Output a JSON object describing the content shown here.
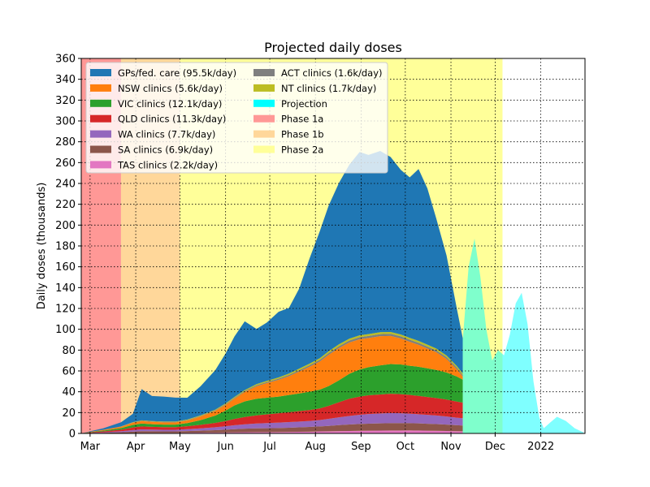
{
  "chart_data": {
    "type": "area",
    "title": "Projected daily doses",
    "ylabel": "Daily doses (thousands)",
    "xlabel": "",
    "ylim": [
      0,
      360
    ],
    "xlim": [
      "2021-02-23",
      "2022-01-31"
    ],
    "yticks": [
      0,
      20,
      40,
      60,
      80,
      100,
      120,
      140,
      160,
      180,
      200,
      220,
      240,
      260,
      280,
      300,
      320,
      340,
      360
    ],
    "xticks": [
      {
        "date": "2021-03-01",
        "label": "Mar"
      },
      {
        "date": "2021-04-01",
        "label": "Apr"
      },
      {
        "date": "2021-05-01",
        "label": "May"
      },
      {
        "date": "2021-06-01",
        "label": "Jun"
      },
      {
        "date": "2021-07-01",
        "label": "Jul"
      },
      {
        "date": "2021-08-01",
        "label": "Aug"
      },
      {
        "date": "2021-09-01",
        "label": "Sep"
      },
      {
        "date": "2021-10-01",
        "label": "Oct"
      },
      {
        "date": "2021-11-01",
        "label": "Nov"
      },
      {
        "date": "2021-12-01",
        "label": "Dec"
      },
      {
        "date": "2022-01-01",
        "label": "2022"
      }
    ],
    "grid": true,
    "legend_position": "upper-left",
    "x_dates": [
      "2021-02-23",
      "2021-03-01",
      "2021-03-10",
      "2021-03-22",
      "2021-03-30",
      "2021-04-05",
      "2021-04-12",
      "2021-04-20",
      "2021-04-28",
      "2021-05-06",
      "2021-05-15",
      "2021-05-25",
      "2021-06-01",
      "2021-06-07",
      "2021-06-14",
      "2021-06-22",
      "2021-06-29",
      "2021-07-07",
      "2021-07-14",
      "2021-07-21",
      "2021-07-28",
      "2021-08-04",
      "2021-08-10",
      "2021-08-17",
      "2021-08-24",
      "2021-08-31",
      "2021-09-06",
      "2021-09-14",
      "2021-09-21",
      "2021-09-28",
      "2021-10-04",
      "2021-10-10",
      "2021-10-16",
      "2021-10-22",
      "2021-10-29",
      "2021-11-05",
      "2021-11-09"
    ],
    "series": [
      {
        "name": "TAS clinics (2.2k/day)",
        "color": "#e377c2",
        "values": [
          0,
          0.1,
          0.2,
          0.3,
          0.5,
          0.6,
          0.6,
          0.6,
          0.6,
          0.7,
          0.8,
          0.9,
          1,
          1.1,
          1.2,
          1.3,
          1.3,
          1.4,
          1.5,
          1.6,
          1.7,
          1.9,
          2,
          2.2,
          2.3,
          2.5,
          2.6,
          2.7,
          2.8,
          2.8,
          2.9,
          2.8,
          2.6,
          2.5,
          2.3,
          2.1,
          2
        ]
      },
      {
        "name": "SA clinics (6.9k/day)",
        "color": "#8c564b",
        "values": [
          0,
          0.2,
          0.4,
          0.8,
          1.2,
          1.5,
          1.4,
          1.3,
          1.3,
          1.5,
          1.8,
          2.2,
          2.6,
          3,
          3.4,
          3.6,
          3.7,
          3.8,
          4,
          4.2,
          4.5,
          4.8,
          5.2,
          5.8,
          6.3,
          6.6,
          6.8,
          6.9,
          7,
          7,
          6.9,
          6.8,
          6.7,
          6.5,
          6.2,
          5.8,
          5.6
        ]
      },
      {
        "name": "WA clinics (7.7k/day)",
        "color": "#9467bd",
        "values": [
          0,
          0.2,
          0.5,
          1,
          1.5,
          1.8,
          1.7,
          1.6,
          1.6,
          1.9,
          2.3,
          2.8,
          3.3,
          3.8,
          4.2,
          4.6,
          4.9,
          5.2,
          5.4,
          5.6,
          5.8,
          6.2,
          6.8,
          7.5,
          8.2,
          8.8,
          9.2,
          9.6,
          9.8,
          9.6,
          9.2,
          8.8,
          8.5,
          8.2,
          7.8,
          7.2,
          7
        ]
      },
      {
        "name": "QLD clinics (11.3k/day)",
        "color": "#d62728",
        "values": [
          0,
          0.4,
          0.8,
          1.5,
          2.5,
          2.8,
          2.6,
          2.5,
          2.5,
          2.8,
          3.4,
          4.2,
          5,
          6,
          7,
          7.8,
          8.4,
          9,
          9.5,
          10,
          10.5,
          11.2,
          12.5,
          14.5,
          16.5,
          17.5,
          18,
          18.2,
          18.5,
          18.3,
          18,
          17.6,
          17.2,
          16.8,
          16.2,
          15.5,
          15
        ]
      },
      {
        "name": "VIC clinics (12.1k/day)",
        "color": "#2ca02c",
        "values": [
          0,
          0.4,
          0.8,
          1.5,
          2.5,
          2.8,
          2.6,
          2.5,
          2.5,
          3,
          4.5,
          7,
          10,
          13,
          15,
          16,
          16,
          16,
          16.5,
          17,
          17.5,
          18,
          19,
          21,
          24,
          26,
          27,
          28,
          28.5,
          28.5,
          28,
          28,
          27.5,
          27,
          26,
          24,
          22
        ]
      },
      {
        "name": "NSW clinics (5.6k/day)",
        "color": "#ff7f0e",
        "values": [
          0,
          0.3,
          0.6,
          1.2,
          2,
          2.3,
          2.2,
          2.1,
          2.1,
          2.5,
          3.5,
          4.5,
          5.5,
          6.5,
          9,
          12,
          14,
          16,
          18,
          21,
          24,
          27,
          30,
          31,
          30,
          29,
          28,
          28,
          27,
          25,
          23,
          21,
          19,
          17,
          13,
          7,
          3
        ]
      },
      {
        "name": "ACT clinics (1.6k/day)",
        "color": "#7f7f7f",
        "values": [
          0,
          0,
          0.1,
          0.2,
          0.3,
          0.4,
          0.4,
          0.4,
          0.4,
          0.5,
          0.5,
          0.6,
          0.7,
          0.8,
          0.9,
          1,
          1.1,
          1.2,
          1.3,
          1.4,
          1.5,
          1.6,
          1.7,
          1.8,
          1.9,
          2,
          2,
          2,
          2,
          2,
          2,
          2,
          1.9,
          1.8,
          1.7,
          1.6,
          1.5
        ]
      },
      {
        "name": "NT clinics (1.7k/day)",
        "color": "#bcbd22",
        "values": [
          0,
          0,
          0.1,
          0.2,
          0.3,
          0.4,
          0.4,
          0.4,
          0.4,
          0.4,
          0.5,
          0.6,
          0.7,
          0.8,
          0.9,
          1,
          1.1,
          1.2,
          1.3,
          1.4,
          1.5,
          1.6,
          1.7,
          1.8,
          1.8,
          1.8,
          1.8,
          1.8,
          1.8,
          1.8,
          1.8,
          1.8,
          1.8,
          1.7,
          1.6,
          1.5,
          1.5
        ]
      },
      {
        "name": "GPs/fed. care (95.5k/day)",
        "color": "#1f77b4",
        "values": [
          0,
          0.4,
          1.5,
          4,
          8,
          30,
          24,
          24,
          23,
          21,
          28,
          38,
          48,
          58,
          66,
          53,
          56,
          63,
          63,
          77,
          101,
          122,
          140,
          155,
          167,
          176,
          172,
          174,
          168,
          158,
          154,
          165,
          150,
          125,
          96,
          55,
          34
        ]
      }
    ],
    "projection": {
      "name": "Projection",
      "color": "#00ffff",
      "x_dates": [
        "2021-11-09",
        "2021-11-13",
        "2021-11-17",
        "2021-11-21",
        "2021-11-25",
        "2021-11-29",
        "2021-12-03",
        "2021-12-07",
        "2021-12-11",
        "2021-12-15",
        "2021-12-19",
        "2021-12-23",
        "2021-12-27",
        "2021-12-31",
        "2022-01-03",
        "2022-01-07",
        "2022-01-12",
        "2022-01-18",
        "2022-01-24",
        "2022-01-30"
      ],
      "values": [
        90,
        160,
        187,
        150,
        100,
        70,
        80,
        75,
        95,
        125,
        135,
        105,
        50,
        15,
        5,
        10,
        16,
        12,
        5,
        1
      ]
    },
    "phases": [
      {
        "name": "Phase 1a",
        "color": "#ff9896",
        "start": "2021-02-23",
        "end": "2021-03-22"
      },
      {
        "name": "Phase 1b",
        "color": "#ffd79a",
        "start": "2021-03-22",
        "end": "2021-05-01"
      },
      {
        "name": "Phase 2a",
        "color": "#ffff99",
        "start": "2021-05-01",
        "end": "2021-12-06"
      }
    ],
    "legend": {
      "col1": [
        {
          "label": "GPs/fed. care (95.5k/day)",
          "color": "#1f77b4"
        },
        {
          "label": "NSW clinics (5.6k/day)",
          "color": "#ff7f0e"
        },
        {
          "label": "VIC clinics (12.1k/day)",
          "color": "#2ca02c"
        },
        {
          "label": "QLD clinics (11.3k/day)",
          "color": "#d62728"
        },
        {
          "label": "WA clinics (7.7k/day)",
          "color": "#9467bd"
        },
        {
          "label": "SA clinics (6.9k/day)",
          "color": "#8c564b"
        },
        {
          "label": "TAS clinics (2.2k/day)",
          "color": "#e377c2"
        }
      ],
      "col2": [
        {
          "label": "ACT clinics (1.6k/day)",
          "color": "#7f7f7f"
        },
        {
          "label": "NT clinics (1.7k/day)",
          "color": "#bcbd22"
        },
        {
          "label": "Projection",
          "color": "#00ffff"
        },
        {
          "label": "Phase 1a",
          "color": "#ff9896"
        },
        {
          "label": "Phase 1b",
          "color": "#ffd79a"
        },
        {
          "label": "Phase 2a",
          "color": "#ffff99"
        }
      ]
    }
  }
}
